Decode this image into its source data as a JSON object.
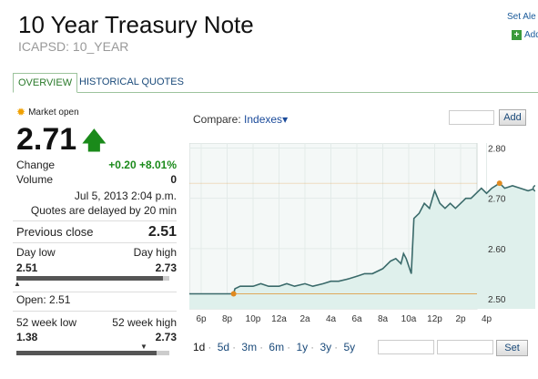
{
  "header": {
    "title": "10 Year Treasury Note",
    "symbol": "ICAPSD: 10_YEAR",
    "set_alert_label": "Set Ale",
    "add_label": "Add"
  },
  "tabs": [
    {
      "label": "OVERVIEW",
      "active": true
    },
    {
      "label": "HISTORICAL QUOTES",
      "active": false
    }
  ],
  "quote": {
    "market_status": "Market open",
    "price": "2.71",
    "change_label": "Change",
    "change_value": "+0.20 +8.01%",
    "volume_label": "Volume",
    "volume_value": "0",
    "timestamp": "Jul 5, 2013 2:04 p.m.",
    "delay_note": "Quotes are delayed by 20 min",
    "previous_close_label": "Previous close",
    "previous_close_value": "2.51",
    "day_low_label": "Day low",
    "day_high_label": "Day high",
    "day_low_value": "2.51",
    "day_high_value": "2.73",
    "day_range_position": 1.0,
    "open_text": "Open: 2.51",
    "week52_low_label": "52 week low",
    "week52_high_label": "52 week high",
    "week52_low_value": "1.38",
    "week52_high_value": "2.73",
    "week52_range_position": 0.84
  },
  "compare": {
    "label": "Compare:",
    "dropdown_label": "Indexes",
    "add_button_label": "Add"
  },
  "chart_data": {
    "type": "area",
    "x_ticks": [
      "6p",
      "8p",
      "10p",
      "12a",
      "2a",
      "4a",
      "6a",
      "8a",
      "10a",
      "12p",
      "2p",
      "4p"
    ],
    "y_ticks": [
      "2.80",
      "2.70",
      "2.60",
      "2.50"
    ],
    "ylim": [
      2.48,
      2.81
    ],
    "previous_close": 2.51,
    "high_reference": 2.73,
    "series": [
      {
        "points": [
          [
            0,
            2.51
          ],
          [
            1.25,
            2.51
          ],
          [
            1.3,
            2.52
          ],
          [
            1.5,
            2.525
          ],
          [
            2,
            2.525
          ],
          [
            2.3,
            2.53
          ],
          [
            2.6,
            2.525
          ],
          [
            3,
            2.525
          ],
          [
            3.3,
            2.53
          ],
          [
            3.6,
            2.525
          ],
          [
            4,
            2.53
          ],
          [
            4.3,
            2.525
          ],
          [
            4.7,
            2.53
          ],
          [
            5,
            2.535
          ],
          [
            5.3,
            2.535
          ],
          [
            5.7,
            2.54
          ],
          [
            6,
            2.545
          ],
          [
            6.3,
            2.55
          ],
          [
            6.6,
            2.55
          ],
          [
            7.0,
            2.56
          ],
          [
            7.3,
            2.575
          ],
          [
            7.5,
            2.58
          ],
          [
            7.7,
            2.57
          ],
          [
            7.8,
            2.59
          ],
          [
            7.9,
            2.58
          ],
          [
            8.1,
            2.55
          ],
          [
            8.2,
            2.66
          ],
          [
            8.4,
            2.67
          ],
          [
            8.6,
            2.69
          ],
          [
            8.8,
            2.68
          ],
          [
            9.0,
            2.715
          ],
          [
            9.2,
            2.69
          ],
          [
            9.4,
            2.68
          ],
          [
            9.6,
            2.69
          ],
          [
            9.8,
            2.68
          ],
          [
            10.0,
            2.69
          ],
          [
            10.2,
            2.7
          ],
          [
            10.4,
            2.7
          ],
          [
            10.6,
            2.71
          ],
          [
            10.8,
            2.72
          ],
          [
            11.0,
            2.71
          ],
          [
            11.2,
            2.72
          ],
          [
            11.5,
            2.73
          ],
          [
            11.7,
            2.72
          ],
          [
            12.0,
            2.725
          ],
          [
            12.3,
            2.72
          ],
          [
            12.6,
            2.715
          ],
          [
            12.9,
            2.72
          ]
        ]
      }
    ],
    "line_color": "#3a6a6a",
    "fill_color": "#dff0ec",
    "marker_color": "#e08a20"
  },
  "ranges": {
    "items": [
      "1d",
      "5d",
      "3m",
      "6m",
      "1y",
      "3y",
      "5y"
    ],
    "active": "1d",
    "set_button_label": "Set"
  }
}
